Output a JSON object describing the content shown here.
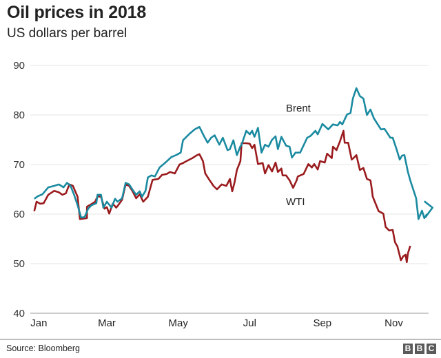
{
  "header": {
    "title": "Oil prices in 2018",
    "subtitle": "US dollars per barrel"
  },
  "footer": {
    "source": "Source: Bloomberg",
    "logo": [
      "B",
      "B",
      "C"
    ]
  },
  "colors": {
    "brent": "#1a8aa0",
    "wti": "#9a1b1e",
    "grid": "#e6e6e6",
    "baseline": "#cccccc"
  },
  "chart_data": {
    "type": "line",
    "title": "Oil prices in 2018",
    "subtitle": "US dollars per barrel",
    "xlabel": "",
    "ylabel": "US dollars per barrel",
    "xunit": "day of year 2018",
    "xlim": [
      0,
      340
    ],
    "ylim": [
      40,
      90
    ],
    "yticks": [
      40,
      50,
      60,
      70,
      80,
      90
    ],
    "ytick_labels": [
      "40",
      "50",
      "60",
      "70",
      "80",
      "90"
    ],
    "xticks": [
      2,
      60,
      121,
      182,
      244,
      305
    ],
    "xtick_labels": [
      "Jan",
      "Mar",
      "May",
      "Jul",
      "Sep",
      "Nov"
    ],
    "grid": true,
    "legend": "inline labels",
    "series": [
      {
        "name": "Brent",
        "label": "Brent",
        "x": [
          1,
          4,
          8,
          13,
          18,
          22,
          26,
          29,
          32,
          35,
          38,
          41,
          44,
          47,
          50,
          54,
          55,
          58,
          60,
          63,
          67,
          70,
          72,
          76,
          79,
          82,
          85,
          88,
          91,
          93,
          96,
          98,
          101,
          104,
          108,
          113,
          118,
          122,
          126,
          128,
          134,
          138,
          142,
          146,
          149,
          152,
          155,
          159,
          162,
          166,
          168,
          171,
          174,
          177,
          178,
          182,
          185,
          187,
          189,
          192,
          195,
          198,
          201,
          204,
          207,
          209,
          212,
          216,
          219,
          221,
          224,
          228,
          231,
          234,
          237,
          241,
          243,
          247,
          252,
          256,
          260,
          262,
          264,
          268,
          271,
          273,
          276,
          279,
          282,
          285,
          288,
          291,
          294,
          297,
          300,
          305,
          307,
          310,
          313,
          315,
          317,
          320,
          322,
          327,
          329,
          332,
          334,
          336,
          335,
          341,
          334
        ],
        "y": [
          63.1,
          63.6,
          64.0,
          65.4,
          65.7,
          66.0,
          65.4,
          66.3,
          65.7,
          63.9,
          61.8,
          59.3,
          59.4,
          61.1,
          61.8,
          62.2,
          63.9,
          63.9,
          61.3,
          62.5,
          61.3,
          63.1,
          62.5,
          63.2,
          66.3,
          66.0,
          64.9,
          63.9,
          64.6,
          63.5,
          64.7,
          67.4,
          67.8,
          67.6,
          69.4,
          70.4,
          71.5,
          71.9,
          72.4,
          74.9,
          76.3,
          77.1,
          77.6,
          75.7,
          74.4,
          75.4,
          75.9,
          74.0,
          75.4,
          72.9,
          73.1,
          74.9,
          71.9,
          73.7,
          74.0,
          76.8,
          76.1,
          76.8,
          75.6,
          77.4,
          72.4,
          74.0,
          73.6,
          75.0,
          75.7,
          73.1,
          75.6,
          73.8,
          73.6,
          71.4,
          72.4,
          72.4,
          73.9,
          75.4,
          75.8,
          76.8,
          76.1,
          78.2,
          77.1,
          78.1,
          77.9,
          78.6,
          78.1,
          80.1,
          80.4,
          83.3,
          85.4,
          83.8,
          83.3,
          80.0,
          81.1,
          79.3,
          78.2,
          77.1,
          77.2,
          75.4,
          75.4,
          73.3,
          71.0,
          71.8,
          71.9,
          68.5,
          66.8,
          63.2,
          59.0,
          60.7,
          59.2,
          59.9,
          59.4,
          61.3,
          62.6
        ]
      },
      {
        "name": "WTI",
        "label": "WTI",
        "x": [
          1,
          3,
          6,
          9,
          13,
          18,
          22,
          25,
          28,
          31,
          34,
          38,
          40,
          46,
          46,
          49,
          53,
          55,
          58,
          61,
          63,
          65,
          68,
          71,
          73,
          76,
          79,
          82,
          85,
          88,
          91,
          94,
          98,
          102,
          107,
          110,
          114,
          117,
          121,
          125,
          128,
          131,
          136,
          140,
          142,
          145,
          147,
          150,
          154,
          157,
          161,
          165,
          168,
          170,
          172,
          174,
          177,
          178,
          182,
          185,
          187,
          189,
          192,
          196,
          198,
          201,
          204,
          207,
          209,
          212,
          213,
          216,
          219,
          222,
          225,
          226,
          231,
          235,
          238,
          240,
          243,
          245,
          249,
          251,
          255,
          256,
          259,
          262,
          265,
          266,
          269,
          272,
          274,
          276,
          279,
          282,
          285,
          288,
          289,
          290,
          295,
          299,
          301,
          304,
          307,
          309,
          311,
          314,
          316,
          318,
          319,
          320,
          322
        ],
        "y": [
          60.6,
          62.5,
          62.1,
          62.2,
          63.9,
          64.7,
          64.4,
          63.9,
          64.2,
          66.0,
          65.7,
          63.5,
          59.0,
          59.2,
          61.5,
          61.9,
          62.5,
          63.6,
          63.5,
          61.1,
          61.4,
          60.1,
          62.1,
          61.3,
          61.9,
          62.9,
          66.0,
          65.7,
          64.6,
          63.2,
          64.0,
          62.5,
          63.5,
          66.9,
          67.1,
          67.9,
          68.1,
          68.5,
          68.2,
          70.0,
          70.3,
          70.7,
          71.3,
          71.9,
          72.1,
          70.7,
          68.2,
          67.1,
          65.7,
          65.0,
          66.0,
          65.7,
          67.1,
          64.6,
          66.4,
          68.9,
          70.7,
          74.3,
          74.3,
          74.2,
          73.3,
          74.0,
          70.1,
          70.3,
          68.2,
          69.9,
          68.6,
          70.4,
          68.5,
          69.2,
          67.8,
          67.8,
          66.8,
          65.3,
          66.8,
          67.6,
          68.1,
          70.1,
          69.4,
          70.1,
          69.0,
          70.7,
          70.4,
          72.2,
          71.3,
          73.6,
          72.9,
          74.7,
          76.8,
          74.4,
          74.4,
          71.0,
          71.4,
          71.9,
          68.9,
          69.3,
          67.1,
          66.8,
          65.3,
          63.5,
          60.6,
          60.1,
          57.4,
          56.7,
          56.8,
          54.3,
          53.5,
          50.7,
          51.5,
          51.8,
          50.3,
          52.1,
          53.6
        ]
      }
    ]
  }
}
